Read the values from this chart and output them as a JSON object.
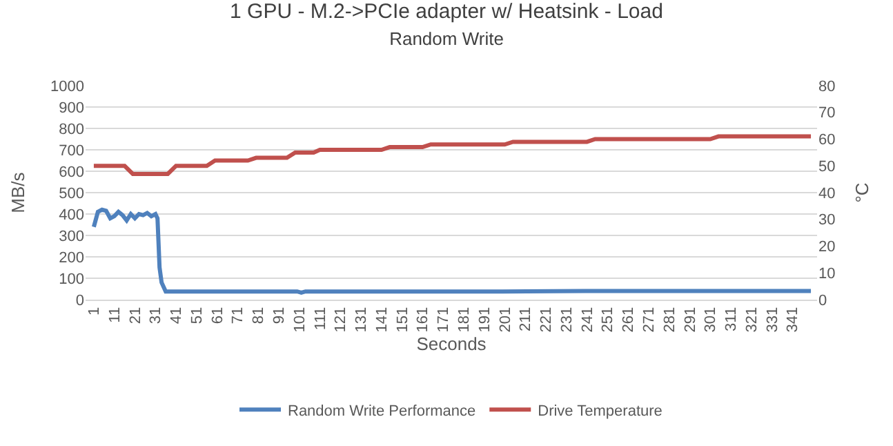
{
  "chart_data": {
    "type": "line",
    "title": "1 GPU - M.2->PCIe adapter w/ Heatsink - Load",
    "subtitle": "Random Write",
    "xlabel": "Seconds",
    "ylabel": "MB/s",
    "y2label": "°C",
    "xlim": [
      -3,
      353
    ],
    "xticks": [
      1,
      11,
      21,
      31,
      41,
      51,
      61,
      71,
      81,
      91,
      101,
      111,
      121,
      131,
      141,
      151,
      161,
      171,
      181,
      191,
      201,
      211,
      221,
      231,
      241,
      251,
      261,
      271,
      281,
      291,
      301,
      311,
      321,
      331,
      341
    ],
    "ylim": [
      0,
      1000
    ],
    "yticks": [
      0,
      100,
      200,
      300,
      400,
      500,
      600,
      700,
      800,
      900,
      1000
    ],
    "y2lim": [
      0,
      80
    ],
    "y2ticks": [
      0,
      10,
      20,
      30,
      40,
      50,
      60,
      70,
      80
    ],
    "grid": "y",
    "legend": "bottom",
    "marker": "none",
    "line_style": "solid",
    "series": [
      {
        "name": "Random Write Performance",
        "color": "#4f81bd",
        "x": [
          1,
          3,
          5,
          7,
          9,
          11,
          13,
          15,
          17,
          19,
          21,
          23,
          25,
          27,
          29,
          31,
          32,
          33,
          34,
          36,
          60,
          100,
          102,
          104,
          150,
          200,
          240,
          260,
          280,
          300,
          350
        ],
        "values": [
          340,
          410,
          420,
          415,
          380,
          390,
          410,
          395,
          370,
          400,
          380,
          400,
          395,
          405,
          390,
          400,
          380,
          150,
          80,
          38,
          38,
          38,
          33,
          38,
          38,
          38,
          40,
          40,
          40,
          40,
          40
        ]
      },
      {
        "name": "Drive Temperature",
        "color": "#c0504d",
        "axis": "y2",
        "x": [
          1,
          16,
          20,
          37,
          41,
          56,
          60,
          76,
          80,
          95,
          99,
          108,
          111,
          141,
          145,
          161,
          165,
          201,
          205,
          241,
          245,
          301,
          305,
          350
        ],
        "values": [
          50,
          50,
          47,
          47,
          50,
          50,
          52,
          52,
          53,
          53,
          55,
          55,
          56,
          56,
          57,
          57,
          58,
          58,
          59,
          59,
          60,
          60,
          61,
          61
        ]
      }
    ]
  }
}
